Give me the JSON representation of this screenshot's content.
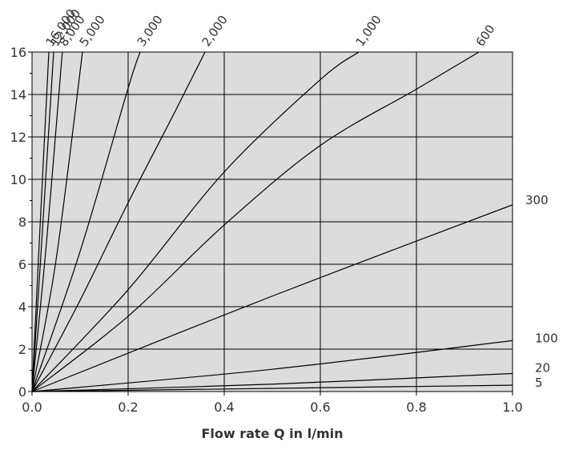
{
  "chart_data": {
    "type": "line",
    "title": "",
    "xlabel": "Flow rate Q in l/min",
    "ylabel": "",
    "xlim": [
      0,
      1.0
    ],
    "ylim": [
      0,
      16
    ],
    "x_ticks": [
      "0.0",
      "0.2",
      "0.4",
      "0.6",
      "0.8",
      "1.0"
    ],
    "y_ticks": [
      "0",
      "2",
      "4",
      "6",
      "8",
      "10",
      "12",
      "14",
      "16"
    ],
    "grid": true,
    "plot_background": "#dcdcdc",
    "line_color": "#000000",
    "series": [
      {
        "name": "5",
        "label_side": "right",
        "points": [
          [
            0,
            0
          ],
          [
            1.0,
            0.3
          ]
        ]
      },
      {
        "name": "20",
        "label_side": "right",
        "points": [
          [
            0,
            0
          ],
          [
            0.5,
            0.35
          ],
          [
            1.0,
            0.85
          ]
        ]
      },
      {
        "name": "100",
        "label_side": "right",
        "points": [
          [
            0,
            0
          ],
          [
            0.5,
            1.05
          ],
          [
            1.0,
            2.4
          ]
        ]
      },
      {
        "name": "300",
        "label_side": "right",
        "points": [
          [
            0,
            0
          ],
          [
            0.5,
            4.5
          ],
          [
            1.0,
            8.8
          ]
        ]
      },
      {
        "name": "600",
        "label_side": "top",
        "points": [
          [
            0,
            0
          ],
          [
            0.2,
            3.55
          ],
          [
            0.4,
            7.85
          ],
          [
            0.6,
            11.6
          ],
          [
            0.8,
            14.25
          ],
          [
            0.93,
            16
          ]
        ]
      },
      {
        "name": "1,000",
        "label_side": "top",
        "points": [
          [
            0,
            0
          ],
          [
            0.2,
            4.8
          ],
          [
            0.4,
            10.35
          ],
          [
            0.6,
            14.7
          ],
          [
            0.68,
            16
          ]
        ]
      },
      {
        "name": "2,000",
        "label_side": "top",
        "points": [
          [
            0,
            0
          ],
          [
            0.1,
            4.3
          ],
          [
            0.2,
            8.9
          ],
          [
            0.3,
            13.3
          ],
          [
            0.36,
            16
          ]
        ]
      },
      {
        "name": "3,000",
        "label_side": "top",
        "points": [
          [
            0,
            0
          ],
          [
            0.1,
            6.6
          ],
          [
            0.2,
            14.3
          ],
          [
            0.225,
            16
          ]
        ]
      },
      {
        "name": "5,000",
        "label_side": "top",
        "points": [
          [
            0,
            0
          ],
          [
            0.05,
            6.2
          ],
          [
            0.105,
            16
          ]
        ]
      },
      {
        "name": "8,000",
        "label_side": "top",
        "points": [
          [
            0,
            0
          ],
          [
            0.03,
            7.0
          ],
          [
            0.063,
            16
          ]
        ]
      },
      {
        "name": "12,000",
        "label_side": "top",
        "points": [
          [
            0,
            0
          ],
          [
            0.02,
            7.0
          ],
          [
            0.045,
            16
          ]
        ]
      },
      {
        "name": "16,000",
        "label_side": "top",
        "points": [
          [
            0,
            0
          ],
          [
            0.015,
            7.0
          ],
          [
            0.035,
            16
          ]
        ]
      }
    ]
  }
}
